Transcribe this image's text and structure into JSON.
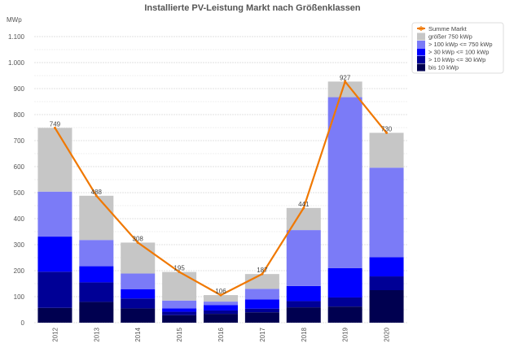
{
  "chart_data": {
    "type": "bar",
    "stacked": true,
    "title": "Installierte PV-Leistung Markt nach Größenklassen",
    "ylabel": "MWp",
    "xlabel": "",
    "ylim": [
      0,
      1100
    ],
    "yticks": [
      0,
      100,
      200,
      300,
      400,
      500,
      600,
      700,
      800,
      900,
      1000,
      1100
    ],
    "ytick_labels": [
      "0",
      "100",
      "200",
      "300",
      "400",
      "500",
      "600",
      "700",
      "800",
      "900",
      "1.000",
      "1.100"
    ],
    "grid": true,
    "legend_position": "right",
    "categories": [
      "2012",
      "2013",
      "2014",
      "2015",
      "2016",
      "2017",
      "2018",
      "2019",
      "2020"
    ],
    "series": [
      {
        "name": "bis 10 kWp",
        "color": "#000050",
        "values": [
          57,
          80,
          55,
          29,
          34,
          40,
          59,
          62,
          125
        ]
      },
      {
        "name": "> 10 kWp <= 30 kWp",
        "color": "#000096",
        "values": [
          139,
          75,
          38,
          13,
          13,
          14,
          24,
          35,
          53
        ]
      },
      {
        "name": "> 30 kWp <= 100 kWp",
        "color": "#0000ff",
        "values": [
          135,
          62,
          36,
          13,
          21,
          35,
          58,
          113,
          74
        ]
      },
      {
        "name": "> 100 kWp <= 750 kWp",
        "color": "#7b7bf7",
        "values": [
          173,
          101,
          60,
          30,
          13,
          41,
          215,
          657,
          344
        ]
      },
      {
        "name": "größer 750 kWp",
        "color": "#c6c6c6",
        "values": [
          245,
          170,
          119,
          110,
          25,
          57,
          85,
          60,
          134
        ]
      }
    ],
    "line": {
      "name": "Summe Markt",
      "color": "#f07800",
      "values": [
        749,
        488,
        308,
        195,
        106,
        187,
        441,
        927,
        730
      ],
      "labels": [
        "749",
        "488",
        "308",
        "195",
        "106",
        "187",
        "441",
        "927",
        "730"
      ]
    }
  }
}
